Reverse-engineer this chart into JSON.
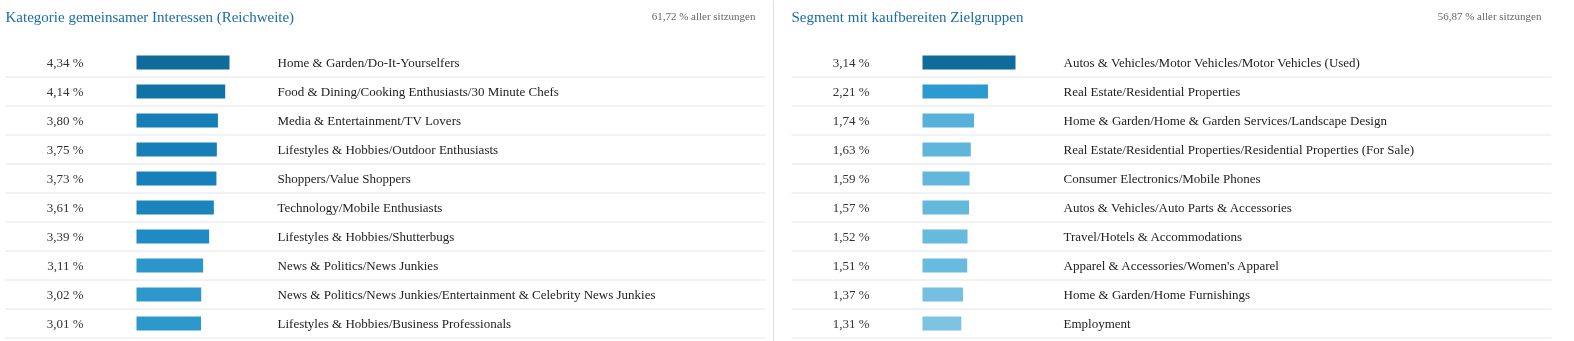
{
  "chart_data": [
    {
      "type": "bar",
      "orientation": "horizontal",
      "title": "Kategorie gemeinsamer Interessen (Reichweite)",
      "annotations": [
        "61,72 % aller sitzungen"
      ],
      "categories": [
        "Home & Garden/Do-It-Yourselfers",
        "Food & Dining/Cooking Enthusiasts/30 Minute Chefs",
        "Media & Entertainment/TV Lovers",
        "Lifestyles & Hobbies/Outdoor Enthusiasts",
        "Shoppers/Value Shoppers",
        "Technology/Mobile Enthusiasts",
        "Lifestyles & Hobbies/Shutterbugs",
        "News & Politics/News Junkies",
        "News & Politics/News Junkies/Entertainment & Celebrity News Junkies",
        "Lifestyles & Hobbies/Business Professionals"
      ],
      "values": [
        4.34,
        4.14,
        3.8,
        3.75,
        3.73,
        3.61,
        3.39,
        3.11,
        3.02,
        3.01
      ],
      "value_labels": [
        "4,34 %",
        "4,14 %",
        "3,80 %",
        "3,75 %",
        "3,73 %",
        "3,61 %",
        "3,39 %",
        "3,11 %",
        "3,02 %",
        "3,01 %"
      ],
      "colors": [
        "#0f6b9b",
        "#1172a6",
        "#157eb6",
        "#167fb8",
        "#1780ba",
        "#1a84bd",
        "#1f8ac3",
        "#2a96cb",
        "#2c98cc",
        "#2c98cc"
      ]
    },
    {
      "type": "bar",
      "orientation": "horizontal",
      "title": "Segment mit kaufbereiten Zielgruppen",
      "annotations": [
        "56,87 % aller sitzungen"
      ],
      "categories": [
        "Autos & Vehicles/Motor Vehicles/Motor Vehicles (Used)",
        "Real Estate/Residential Properties",
        "Home & Garden/Home & Garden Services/Landscape Design",
        "Real Estate/Residential Properties/Residential Properties (For Sale)",
        "Consumer Electronics/Mobile Phones",
        "Autos & Vehicles/Auto Parts & Accessories",
        "Travel/Hotels & Accommodations",
        "Apparel & Accessories/Women's Apparel",
        "Home & Garden/Home Furnishings",
        "Employment"
      ],
      "values": [
        3.14,
        2.21,
        1.74,
        1.63,
        1.59,
        1.57,
        1.52,
        1.51,
        1.37,
        1.31
      ],
      "value_labels": [
        "3,14 %",
        "2,21 %",
        "1,74 %",
        "1,63 %",
        "1,59 %",
        "1,57 %",
        "1,52 %",
        "1,51 %",
        "1,37 %",
        "1,31 %"
      ],
      "colors": [
        "#0f6b9b",
        "#2a9ad0",
        "#57b1da",
        "#5fb5dc",
        "#62b7dc",
        "#63b8dc",
        "#67badd",
        "#68bade",
        "#75c0e0",
        "#7bc3e1"
      ]
    }
  ]
}
